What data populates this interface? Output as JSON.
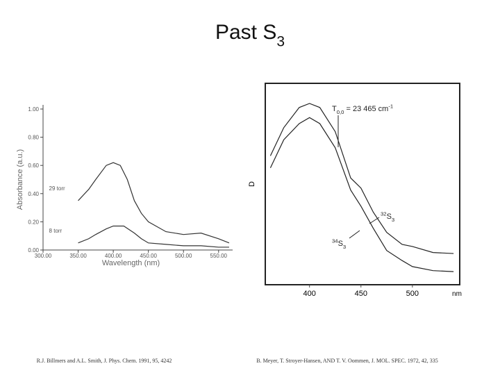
{
  "title": [
    {
      "text": "Past S"
    },
    {
      "text": "3",
      "shift": "sub"
    }
  ],
  "chart_data": [
    {
      "type": "line",
      "ylabel": "Absorbance (a.u.)",
      "xlabel": "Wavelength (nm)",
      "xlim": [
        300,
        570
      ],
      "ylim": [
        0,
        1
      ],
      "xticks": [
        {
          "value": 300,
          "label": "300.00"
        },
        {
          "value": 350,
          "label": "350.00"
        },
        {
          "value": 400,
          "label": "400.00"
        },
        {
          "value": 450,
          "label": "450.00"
        },
        {
          "value": 500,
          "label": "500.00"
        },
        {
          "value": 550,
          "label": "550.00"
        }
      ],
      "yticks": [
        {
          "value": 0,
          "label": "0.00"
        },
        {
          "value": 0.2,
          "label": "0.20"
        },
        {
          "value": 0.4,
          "label": "0.40"
        },
        {
          "value": 0.6,
          "label": "0.60"
        },
        {
          "value": 0.8,
          "label": "0.80"
        },
        {
          "value": 1,
          "label": "1.00"
        }
      ],
      "frame": false,
      "series": [
        {
          "name": "29 torr",
          "color": "#333333",
          "x": [
            350,
            365,
            375,
            390,
            400,
            410,
            420,
            430,
            440,
            450,
            475,
            500,
            525,
            550,
            565
          ],
          "values": [
            0.35,
            0.43,
            0.5,
            0.6,
            0.62,
            0.6,
            0.5,
            0.35,
            0.26,
            0.2,
            0.13,
            0.11,
            0.12,
            0.08,
            0.05
          ]
        },
        {
          "name": "8 torr",
          "color": "#333333",
          "x": [
            350,
            365,
            375,
            390,
            400,
            415,
            430,
            440,
            450,
            475,
            500,
            525,
            550,
            565
          ],
          "values": [
            0.05,
            0.08,
            0.11,
            0.15,
            0.17,
            0.17,
            0.12,
            0.08,
            0.05,
            0.04,
            0.03,
            0.03,
            0.02,
            0.02
          ]
        }
      ],
      "caption": "R.J. Billmers and A.L. Smith, J. Phys. Chem. 1991, 95, 4242"
    },
    {
      "type": "line",
      "ylabel": "D",
      "xlabel": "nm",
      "xlim": [
        357,
        546
      ],
      "ylim": [
        0,
        1
      ],
      "xticks": [
        400,
        450,
        500
      ],
      "frame": true,
      "annotations": [
        [
          {
            "text": "T"
          },
          {
            "text": "0,0",
            "shift": "sub"
          },
          {
            "text": " = 23 465 cm"
          },
          {
            "text": "-1",
            "shift": "super"
          }
        ],
        [
          {
            "text": "32",
            "shift": "super"
          },
          {
            "text": "S"
          },
          {
            "text": "3",
            "shift": "sub"
          }
        ],
        [
          {
            "text": "34",
            "shift": "super"
          },
          {
            "text": "S"
          },
          {
            "text": "3",
            "shift": "sub"
          }
        ]
      ],
      "series": [
        {
          "color": "#222222",
          "x": [
            362,
            375,
            390,
            400,
            410,
            425,
            440,
            450,
            462,
            475,
            490,
            500,
            520,
            540
          ],
          "values": [
            0.64,
            0.78,
            0.88,
            0.9,
            0.88,
            0.76,
            0.53,
            0.48,
            0.36,
            0.26,
            0.2,
            0.19,
            0.16,
            0.155
          ]
        },
        {
          "color": "#222222",
          "x": [
            362,
            375,
            390,
            400,
            410,
            425,
            440,
            450,
            462,
            475,
            490,
            500,
            520,
            540
          ],
          "values": [
            0.58,
            0.72,
            0.8,
            0.83,
            0.8,
            0.68,
            0.47,
            0.39,
            0.28,
            0.17,
            0.12,
            0.09,
            0.07,
            0.065
          ]
        }
      ],
      "caption": "B. Meyer, T. Stroyer-Hansen, AND T. V. Oommen, J. MOL. SPEC. 1972, 42, 335"
    }
  ]
}
